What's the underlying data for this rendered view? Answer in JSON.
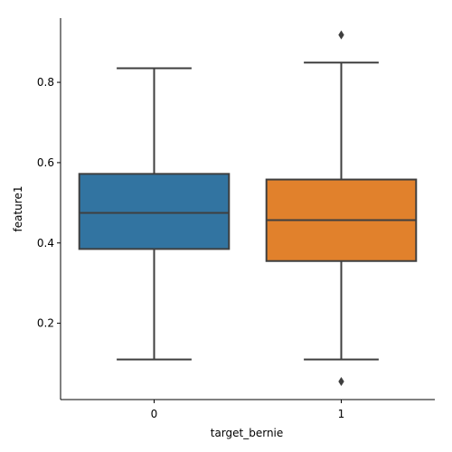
{
  "chart_data": {
    "type": "boxplot",
    "xlabel": "target_bernie",
    "ylabel": "feature1",
    "categories": [
      "0",
      "1"
    ],
    "ylim": [
      0.01,
      0.96
    ],
    "yticks": [
      0.2,
      0.4,
      0.6,
      0.8
    ],
    "ytick_labels": [
      "0.2",
      "0.4",
      "0.6",
      "0.8"
    ],
    "grid": false,
    "boxes": [
      {
        "category": "0",
        "color": "#3274a1",
        "whisker_low": 0.11,
        "q1": 0.385,
        "median": 0.475,
        "q3": 0.572,
        "whisker_high": 0.835,
        "outliers": []
      },
      {
        "category": "1",
        "color": "#e1812c",
        "whisker_low": 0.11,
        "q1": 0.355,
        "median": 0.457,
        "q3": 0.558,
        "whisker_high": 0.849,
        "outliers": [
          0.918,
          0.055
        ]
      }
    ]
  }
}
